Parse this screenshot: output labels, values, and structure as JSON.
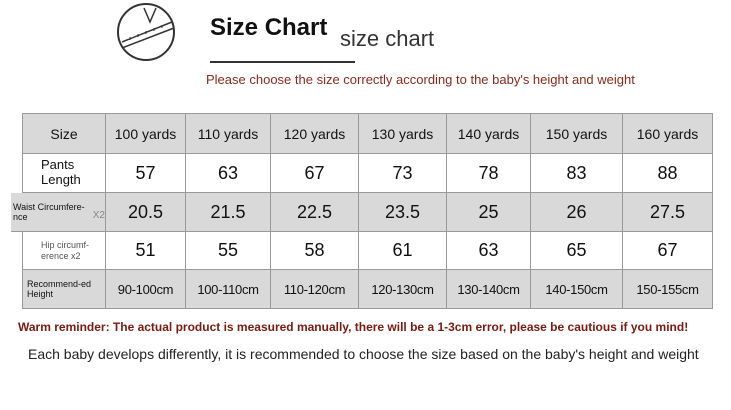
{
  "header": {
    "title": "Size Chart",
    "subtitle": "size chart",
    "note": "Please choose the size correctly according to the baby's height and weight"
  },
  "table": {
    "columns": [
      "Size",
      "100 yards",
      "110 yards",
      "120 yards",
      "130 yards",
      "140 yards",
      "150 yards",
      "160 yards"
    ],
    "rows": [
      {
        "label": "Pants Length",
        "values": [
          57,
          63,
          67,
          73,
          78,
          83,
          88
        ]
      },
      {
        "label": "Waist Circumfere-nce",
        "suffix": "X2",
        "values": [
          20.5,
          21.5,
          22.5,
          23.5,
          25,
          26,
          27.5
        ]
      },
      {
        "label": "Hip circumf-erence x2",
        "values": [
          51,
          55,
          58,
          61,
          63,
          65,
          67
        ]
      },
      {
        "label": "Recommend-ed Height",
        "values": [
          "90-100cm",
          "100-110cm",
          "110-120cm",
          "120-130cm",
          "130-140cm",
          "140-150cm",
          "150-155cm"
        ]
      }
    ]
  },
  "footer": {
    "reminder": "Warm reminder: The actual product is measured manually, there will be a 1-3cm error, please be cautious if you mind!",
    "advice": "Each baby develops differently, it is recommended to choose the size based on the baby's height and weight"
  }
}
